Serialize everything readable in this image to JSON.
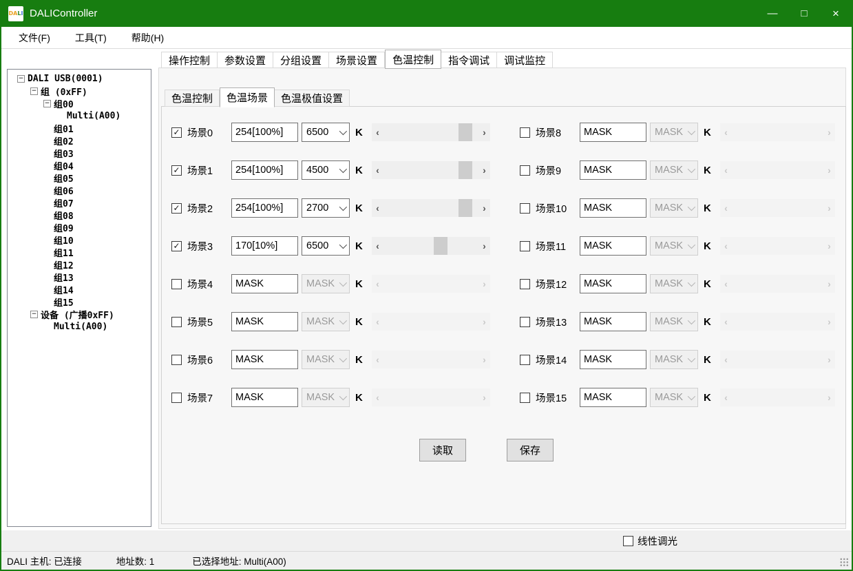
{
  "window": {
    "title": "DALIController",
    "icon_text": "DALI",
    "controls": {
      "minimize": "—",
      "maximize": "□",
      "close": "×"
    }
  },
  "colors": {
    "titlebar_green": "#177d10",
    "panel_bg": "#f7f7f7",
    "slider_track": "#efefef",
    "slider_thumb": "#cdcdcd",
    "button_bg": "#e1e1e1"
  },
  "menu": {
    "items": [
      "文件(F)",
      "工具(T)",
      "帮助(H)"
    ]
  },
  "tree": {
    "items": [
      {
        "label": "DALI USB(0001)",
        "level": 0,
        "expander": true
      },
      {
        "label": "组 (0xFF)",
        "level": 1,
        "expander": true
      },
      {
        "label": "组00",
        "level": 2,
        "expander": true
      },
      {
        "label": "Multi(A00)",
        "level": 3,
        "expander": false
      },
      {
        "label": "组01",
        "level": 2,
        "expander": false
      },
      {
        "label": "组02",
        "level": 2,
        "expander": false
      },
      {
        "label": "组03",
        "level": 2,
        "expander": false
      },
      {
        "label": "组04",
        "level": 2,
        "expander": false
      },
      {
        "label": "组05",
        "level": 2,
        "expander": false
      },
      {
        "label": "组06",
        "level": 2,
        "expander": false
      },
      {
        "label": "组07",
        "level": 2,
        "expander": false
      },
      {
        "label": "组08",
        "level": 2,
        "expander": false
      },
      {
        "label": "组09",
        "level": 2,
        "expander": false
      },
      {
        "label": "组10",
        "level": 2,
        "expander": false
      },
      {
        "label": "组11",
        "level": 2,
        "expander": false
      },
      {
        "label": "组12",
        "level": 2,
        "expander": false
      },
      {
        "label": "组13",
        "level": 2,
        "expander": false
      },
      {
        "label": "组14",
        "level": 2,
        "expander": false
      },
      {
        "label": "组15",
        "level": 2,
        "expander": false
      },
      {
        "label": "设备 (广播0xFF)",
        "level": 1,
        "expander": true
      },
      {
        "label": "Multi(A00)",
        "level": 2,
        "expander": false
      }
    ]
  },
  "tabs": {
    "items": [
      "操作控制",
      "参数设置",
      "分组设置",
      "场景设置",
      "色温控制",
      "指令调试",
      "调试监控"
    ],
    "active_index": 4
  },
  "subtabs": {
    "items": [
      "色温控制",
      "色温场景",
      "色温极值设置"
    ],
    "active_index": 1
  },
  "scenes": [
    {
      "label": "场景0",
      "checked": true,
      "value": "254[100%]",
      "temp": "6500",
      "unit": "K",
      "enabled": true,
      "slider_pos": 0.92
    },
    {
      "label": "场景1",
      "checked": true,
      "value": "254[100%]",
      "temp": "4500",
      "unit": "K",
      "enabled": true,
      "slider_pos": 0.92
    },
    {
      "label": "场景2",
      "checked": true,
      "value": "254[100%]",
      "temp": "2700",
      "unit": "K",
      "enabled": true,
      "slider_pos": 0.92
    },
    {
      "label": "场景3",
      "checked": true,
      "value": "170[10%]",
      "temp": "6500",
      "unit": "K",
      "enabled": true,
      "slider_pos": 0.62
    },
    {
      "label": "场景4",
      "checked": false,
      "value": "MASK",
      "temp": "MASK",
      "unit": "K",
      "enabled": false,
      "slider_pos": null
    },
    {
      "label": "场景5",
      "checked": false,
      "value": "MASK",
      "temp": "MASK",
      "unit": "K",
      "enabled": false,
      "slider_pos": null
    },
    {
      "label": "场景6",
      "checked": false,
      "value": "MASK",
      "temp": "MASK",
      "unit": "K",
      "enabled": false,
      "slider_pos": null
    },
    {
      "label": "场景7",
      "checked": false,
      "value": "MASK",
      "temp": "MASK",
      "unit": "K",
      "enabled": false,
      "slider_pos": null
    },
    {
      "label": "场景8",
      "checked": false,
      "value": "MASK",
      "temp": "MASK",
      "unit": "K",
      "enabled": false,
      "slider_pos": null
    },
    {
      "label": "场景9",
      "checked": false,
      "value": "MASK",
      "temp": "MASK",
      "unit": "K",
      "enabled": false,
      "slider_pos": null
    },
    {
      "label": "场景10",
      "checked": false,
      "value": "MASK",
      "temp": "MASK",
      "unit": "K",
      "enabled": false,
      "slider_pos": null
    },
    {
      "label": "场景11",
      "checked": false,
      "value": "MASK",
      "temp": "MASK",
      "unit": "K",
      "enabled": false,
      "slider_pos": null
    },
    {
      "label": "场景12",
      "checked": false,
      "value": "MASK",
      "temp": "MASK",
      "unit": "K",
      "enabled": false,
      "slider_pos": null
    },
    {
      "label": "场景13",
      "checked": false,
      "value": "MASK",
      "temp": "MASK",
      "unit": "K",
      "enabled": false,
      "slider_pos": null
    },
    {
      "label": "场景14",
      "checked": false,
      "value": "MASK",
      "temp": "MASK",
      "unit": "K",
      "enabled": false,
      "slider_pos": null
    },
    {
      "label": "场景15",
      "checked": false,
      "value": "MASK",
      "temp": "MASK",
      "unit": "K",
      "enabled": false,
      "slider_pos": null
    }
  ],
  "buttons": {
    "read": "读取",
    "save": "保存"
  },
  "linear_dimming": {
    "label": "线性调光",
    "checked": false
  },
  "statusbar": {
    "host": "DALI 主机: 已连接",
    "address_count": "地址数: 1",
    "selected_address": "已选择地址: Multi(A00)"
  }
}
